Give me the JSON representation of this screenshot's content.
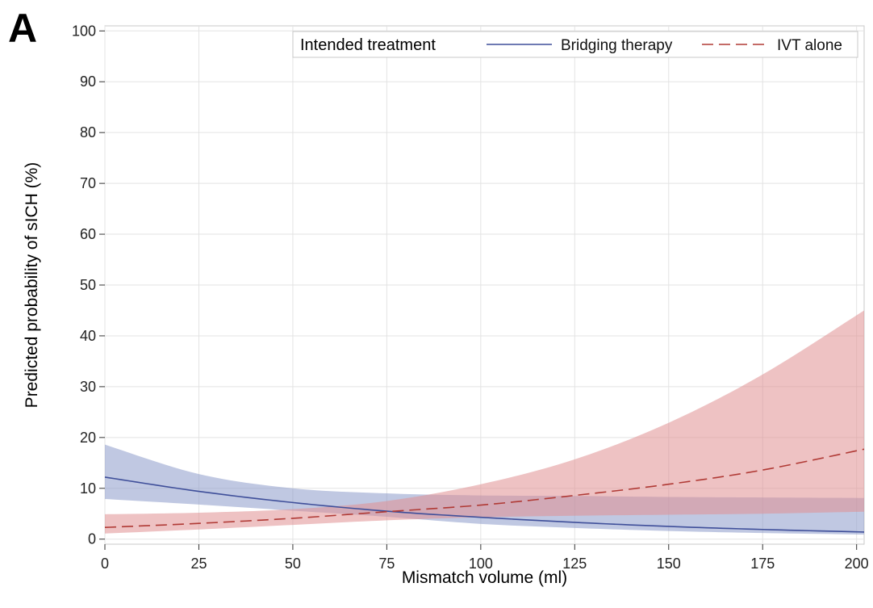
{
  "panel_label": "A",
  "chart_data": {
    "type": "line",
    "xlabel": "Mismatch volume (ml)",
    "ylabel": "Predicted probability of sICH (%)",
    "xlim": [
      0,
      202
    ],
    "ylim": [
      -1,
      101
    ],
    "xticks": [
      0,
      25,
      50,
      75,
      100,
      125,
      150,
      175,
      200
    ],
    "yticks": [
      0,
      10,
      20,
      30,
      40,
      50,
      60,
      70,
      80,
      90,
      100
    ],
    "grid": true,
    "legend": {
      "placement": "top-right",
      "title": "Intended treatment"
    },
    "x": [
      0,
      25,
      50,
      75,
      100,
      125,
      150,
      175,
      202
    ],
    "series": [
      {
        "name": "Bridging therapy",
        "style": "solid",
        "color": "#3f4f9a",
        "band_color": "#8c9acb",
        "values": [
          12.2,
          9.4,
          7.2,
          5.5,
          4.3,
          3.3,
          2.5,
          1.9,
          1.4
        ],
        "lower": [
          7.9,
          6.8,
          5.6,
          4.4,
          3.0,
          2.2,
          1.6,
          1.2,
          0.9
        ],
        "upper": [
          18.6,
          12.8,
          10.0,
          9.0,
          8.6,
          8.5,
          8.3,
          8.2,
          8.1
        ]
      },
      {
        "name": "IVT alone",
        "style": "dashed",
        "color": "#b03a35",
        "band_color": "#e08f92",
        "values": [
          2.3,
          3.1,
          4.1,
          5.4,
          6.7,
          8.6,
          10.8,
          13.6,
          17.7
        ],
        "lower": [
          1.1,
          1.9,
          2.8,
          3.7,
          4.3,
          4.6,
          4.8,
          5.0,
          5.4
        ],
        "upper": [
          4.9,
          5.2,
          5.9,
          7.5,
          10.8,
          15.7,
          22.9,
          32.4,
          45.0
        ]
      }
    ]
  }
}
